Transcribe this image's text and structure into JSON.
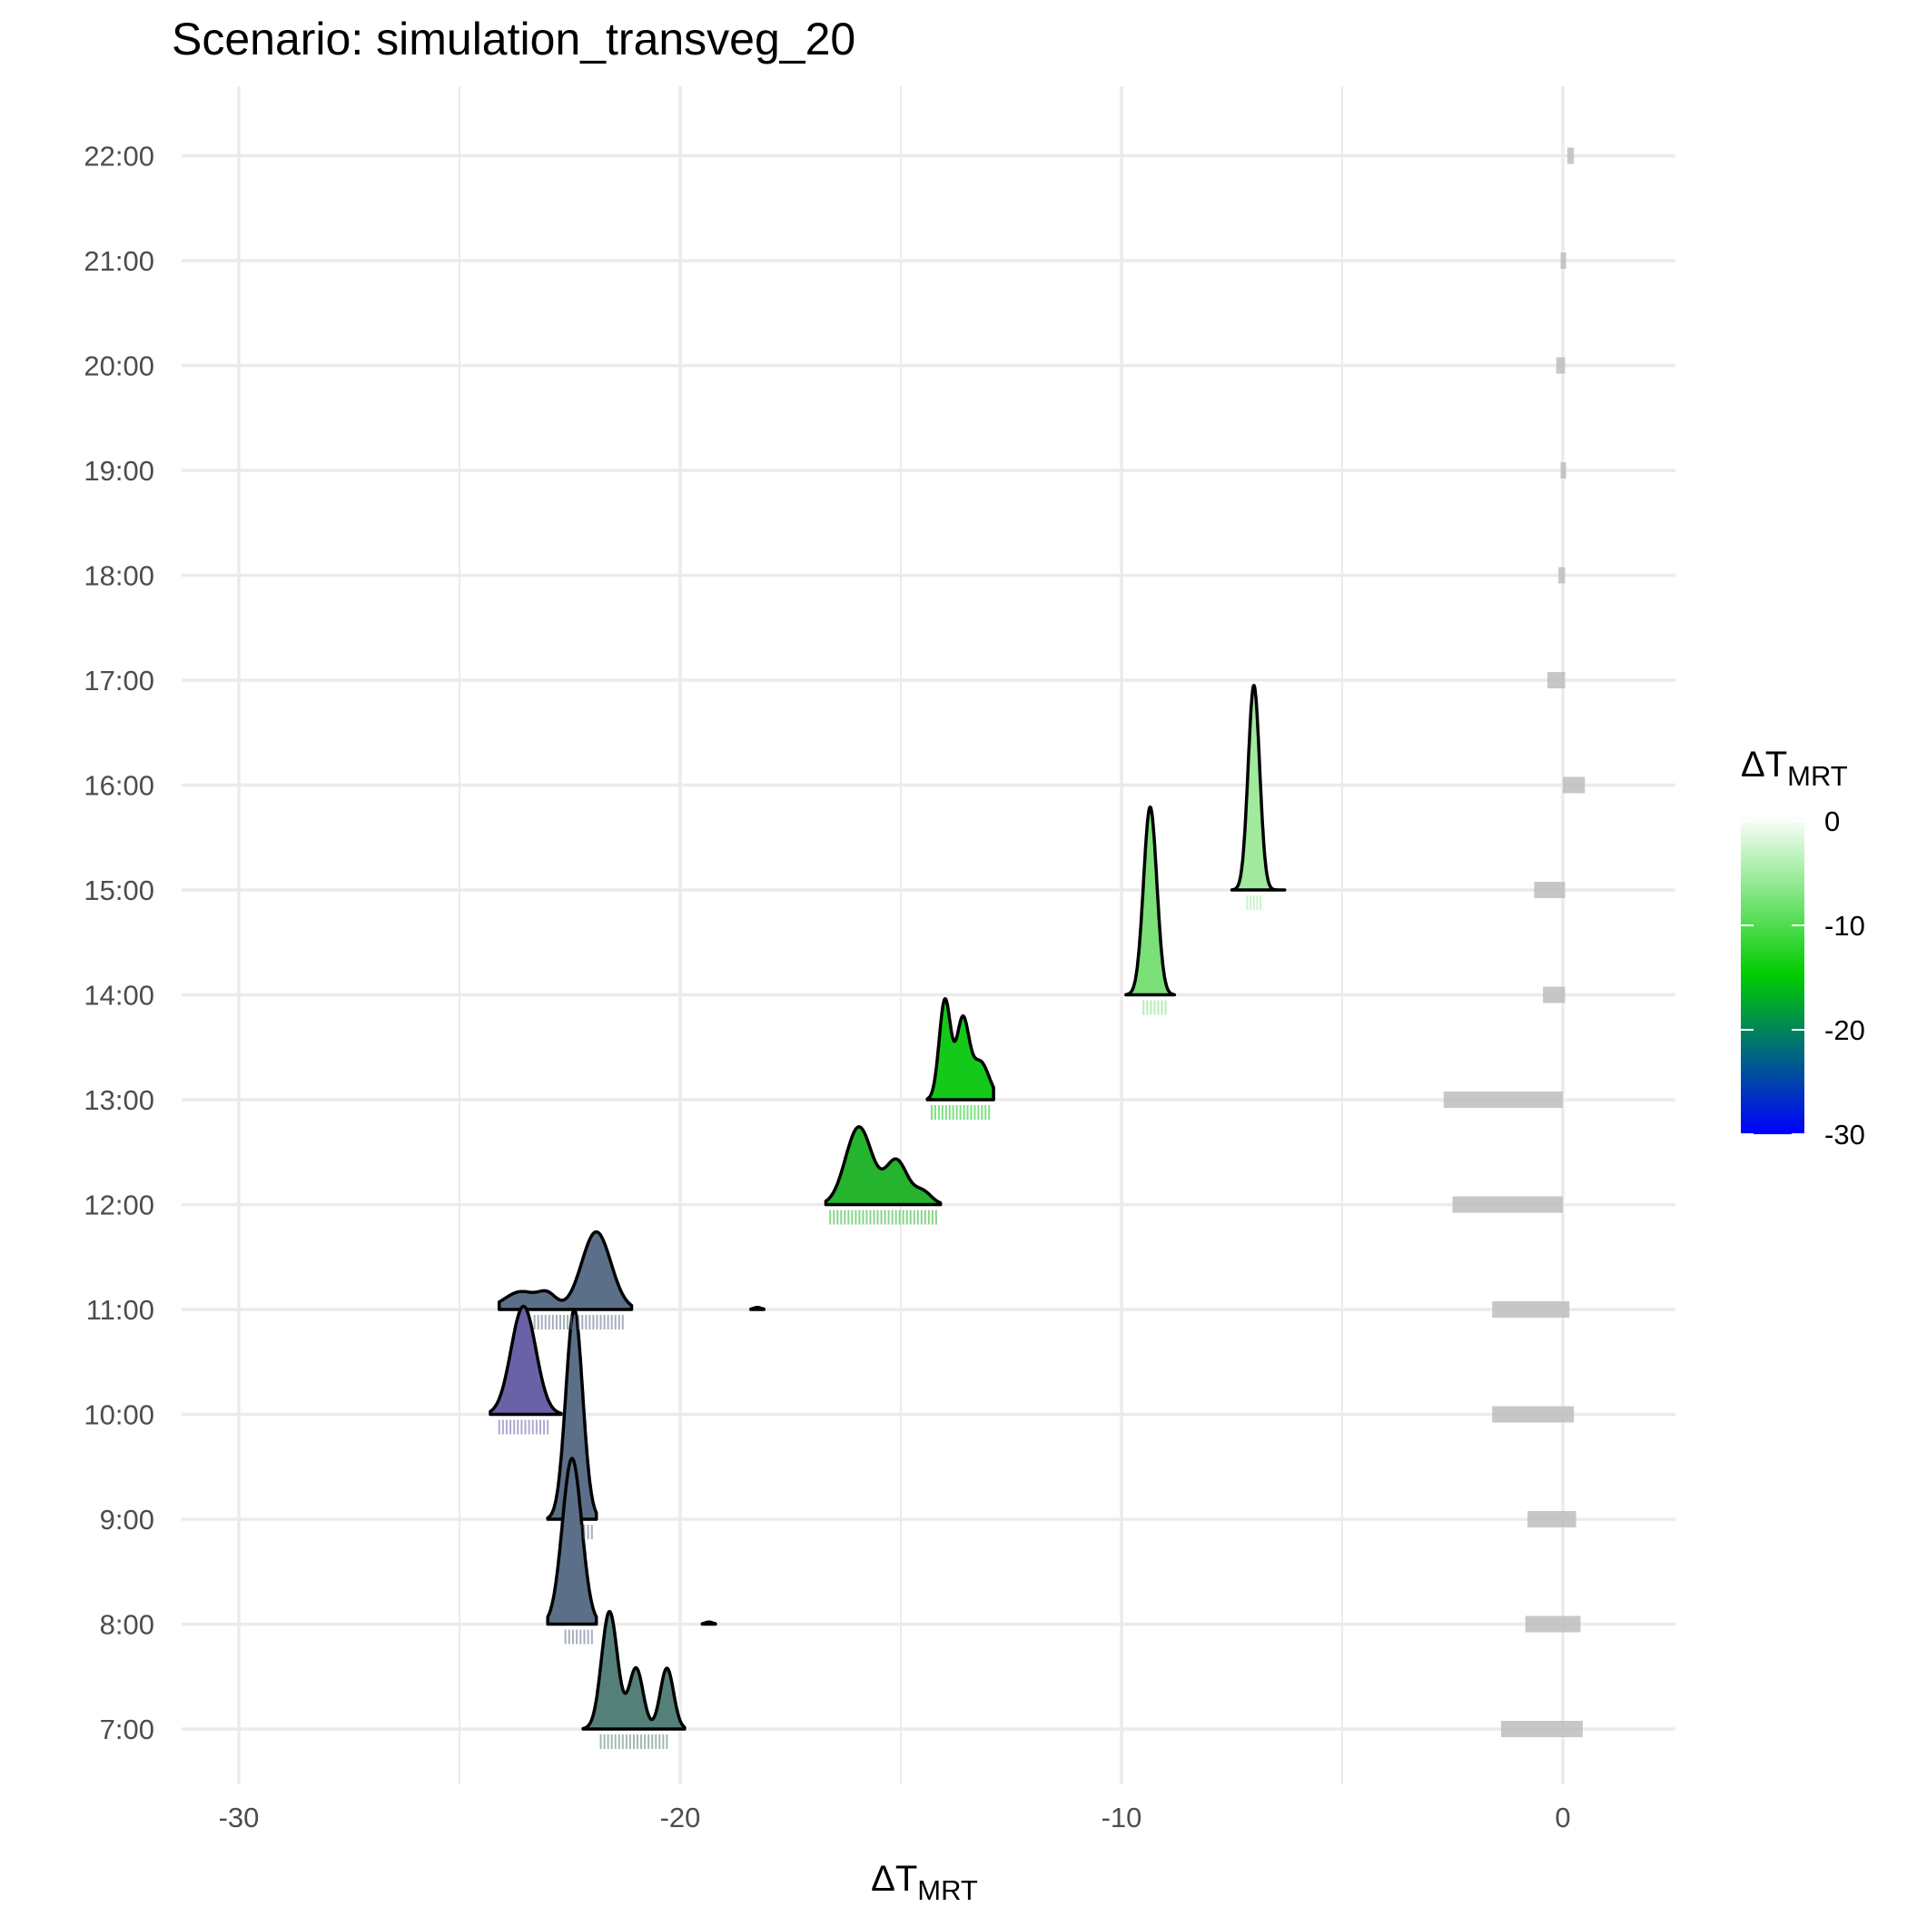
{
  "chart_data": {
    "type": "ridgeline",
    "title": "Scenario: simulation_transveg_20",
    "xlabel": {
      "main": "ΔT",
      "sub": "MRT"
    },
    "ylabel": "",
    "xlim": [
      -33.5,
      2.5
    ],
    "x_ticks": [
      -30,
      -20,
      -10,
      0
    ],
    "x_tick_labels": [
      "-30",
      "-20",
      "-10",
      "0"
    ],
    "x_minor_gridlines": [
      -25,
      -15,
      -5
    ],
    "ylim": [
      6.4,
      22.6
    ],
    "y_ticks": [
      7,
      8,
      9,
      10,
      11,
      12,
      13,
      14,
      15,
      16,
      17,
      18,
      19,
      20,
      21,
      22
    ],
    "y_tick_labels": [
      "7:00",
      "8:00",
      "9:00",
      "10:00",
      "11:00",
      "12:00",
      "13:00",
      "14:00",
      "15:00",
      "16:00",
      "17:00",
      "18:00",
      "19:00",
      "20:00",
      "21:00",
      "22:00"
    ],
    "grid": true,
    "legend": {
      "title": {
        "main": "ΔT",
        "sub": "MRT"
      },
      "position": "right",
      "type": "colorbar",
      "range": [
        -30,
        0
      ],
      "ticks": [
        0,
        -10,
        -20,
        -30
      ],
      "tick_labels": [
        "0",
        "-10",
        "-20",
        "-30"
      ],
      "colors": [
        {
          "value": 0,
          "color": "#ffffff"
        },
        {
          "value": -15,
          "color": "#00cc00"
        },
        {
          "value": -30,
          "color": "#0000ff"
        }
      ]
    },
    "series": [
      {
        "hour": "7:00",
        "range": [
          -22.2,
          -19.9
        ],
        "fill": "#55807a",
        "peaks": [
          {
            "x": -21.6,
            "sd": 0.18,
            "h": 1.12
          },
          {
            "x": -21.0,
            "sd": 0.16,
            "h": 0.58
          },
          {
            "x": -20.3,
            "sd": 0.15,
            "h": 0.58
          }
        ],
        "rug": {
          "from": -21.8,
          "to": -20.3
        }
      },
      {
        "hour": "7:00",
        "range": [
          -1.5,
          0.5
        ],
        "fill": "#bdbdbd",
        "rug": {
          "from": -1.4,
          "to": 0.45
        }
      },
      {
        "hour": "8:00",
        "range": [
          -23.0,
          -21.9
        ],
        "fill": "#5c6f88",
        "peaks": [
          {
            "x": -22.45,
            "sd": 0.22,
            "h": 1.58
          }
        ],
        "rug": {
          "from": -22.6,
          "to": -22.0
        }
      },
      {
        "hour": "8:00",
        "range": [
          -19.5,
          -19.2
        ],
        "fill": "#55807a",
        "peaks": [
          {
            "x": -19.35,
            "sd": 0.08,
            "h": 0.02
          }
        ]
      },
      {
        "hour": "8:00",
        "range": [
          -0.9,
          0.45
        ],
        "fill": "#bdbdbd",
        "rug": {
          "from": -0.85,
          "to": 0.4
        }
      },
      {
        "hour": "9:00",
        "range": [
          -23.0,
          -21.9
        ],
        "fill": "#5c6f88",
        "peaks": [
          {
            "x": -22.4,
            "sd": 0.19,
            "h": 2.0
          }
        ],
        "rug": {
          "from": -22.6,
          "to": -22.0
        }
      },
      {
        "hour": "9:00",
        "range": [
          -0.8,
          0.35
        ],
        "fill": "#bdbdbd",
        "rug": {
          "from": -0.8,
          "to": 0.3
        }
      },
      {
        "hour": "10:00",
        "range": [
          -24.3,
          -22.7
        ],
        "fill": "#6a62a6",
        "peaks": [
          {
            "x": -23.55,
            "sd": 0.28,
            "h": 1.03
          }
        ],
        "rug": {
          "from": -24.1,
          "to": -23.0
        }
      },
      {
        "hour": "10:00",
        "range": [
          -1.6,
          0.25
        ],
        "fill": "#bdbdbd",
        "rug": {
          "from": -1.6,
          "to": 0.25
        }
      },
      {
        "hour": "11:00",
        "range": [
          -24.1,
          -21.1
        ],
        "fill": "#5c6f88",
        "peaks": [
          {
            "x": -23.6,
            "sd": 0.38,
            "h": 0.17
          },
          {
            "x": -23.0,
            "sd": 0.2,
            "h": 0.12
          },
          {
            "x": -21.9,
            "sd": 0.33,
            "h": 0.74
          }
        ],
        "rug": {
          "from": -23.3,
          "to": -21.3
        }
      },
      {
        "hour": "11:00",
        "range": [
          -18.4,
          -18.1
        ],
        "fill": "#55807a",
        "peaks": [
          {
            "x": -18.25,
            "sd": 0.08,
            "h": 0.02
          }
        ]
      },
      {
        "hour": "11:00",
        "range": [
          -1.6,
          0.2
        ],
        "fill": "#bdbdbd",
        "rug": {
          "from": -1.6,
          "to": 0.15
        }
      },
      {
        "hour": "12:00",
        "range": [
          -16.7,
          -14.1
        ],
        "fill": "#26b32e",
        "peaks": [
          {
            "x": -15.95,
            "sd": 0.3,
            "h": 0.74
          },
          {
            "x": -15.1,
            "sd": 0.25,
            "h": 0.42
          },
          {
            "x": -14.5,
            "sd": 0.2,
            "h": 0.12
          }
        ],
        "rug": {
          "from": -16.6,
          "to": -14.2
        }
      },
      {
        "hour": "12:00",
        "range": [
          -2.5,
          0.05
        ],
        "fill": "#bdbdbd",
        "rug": {
          "from": -2.5,
          "to": 0.0
        }
      },
      {
        "hour": "13:00",
        "range": [
          -14.4,
          -12.9
        ],
        "fill": "#14c91a",
        "peaks": [
          {
            "x": -14.0,
            "sd": 0.13,
            "h": 0.95
          },
          {
            "x": -13.6,
            "sd": 0.14,
            "h": 0.74
          },
          {
            "x": -13.2,
            "sd": 0.2,
            "h": 0.36
          }
        ],
        "rug": {
          "from": -14.3,
          "to": -13.0
        }
      },
      {
        "hour": "13:00",
        "range": [
          -2.7,
          0.05
        ],
        "fill": "#bdbdbd",
        "rug": {
          "from": -2.7,
          "to": 0.0
        }
      },
      {
        "hour": "14:00",
        "range": [
          -9.9,
          -8.8
        ],
        "fill": "#7ae077",
        "peaks": [
          {
            "x": -9.35,
            "sd": 0.15,
            "h": 1.79
          }
        ],
        "rug": {
          "from": -9.5,
          "to": -9.0
        }
      },
      {
        "hour": "14:00",
        "range": [
          -0.45,
          0.05
        ],
        "fill": "#bdbdbd",
        "rug": {
          "from": -0.45,
          "to": 0.05
        }
      },
      {
        "hour": "15:00",
        "range": [
          -7.5,
          -6.3
        ],
        "fill": "#a0e99d",
        "peaks": [
          {
            "x": -7.0,
            "sd": 0.13,
            "h": 1.95
          }
        ],
        "rug": {
          "from": -7.15,
          "to": -6.85
        }
      },
      {
        "hour": "15:00",
        "range": [
          -0.65,
          0.05
        ],
        "fill": "#bdbdbd",
        "rug": {
          "from": -0.65,
          "to": 0.05
        }
      },
      {
        "hour": "16:00",
        "range": [
          0.0,
          0.55
        ],
        "fill": "#bdbdbd",
        "rug": {
          "from": 0.0,
          "to": 0.5
        }
      },
      {
        "hour": "17:00",
        "range": [
          -0.35,
          0.05
        ],
        "fill": "#bdbdbd",
        "rug": {
          "from": -0.35,
          "to": 0.05
        }
      },
      {
        "hour": "18:00",
        "range": [
          -0.1,
          0.05
        ],
        "fill": "#bdbdbd",
        "rug": {
          "from": -0.1,
          "to": 0.05
        }
      },
      {
        "hour": "19:00",
        "range": [
          -0.05,
          0.05
        ],
        "fill": "#bdbdbd",
        "rug": {
          "from": -0.05,
          "to": 0.05
        }
      },
      {
        "hour": "20:00",
        "range": [
          -0.15,
          0.05
        ],
        "fill": "#bdbdbd",
        "rug": {
          "from": -0.15,
          "to": 0.05
        }
      },
      {
        "hour": "21:00",
        "range": [
          -0.05,
          0.05
        ],
        "fill": "#bdbdbd",
        "rug": {
          "from": -0.05,
          "to": 0.05
        }
      },
      {
        "hour": "22:00",
        "range": [
          0.1,
          0.25
        ],
        "fill": "#bdbdbd",
        "rug": {
          "from": 0.1,
          "to": 0.25
        }
      }
    ]
  }
}
